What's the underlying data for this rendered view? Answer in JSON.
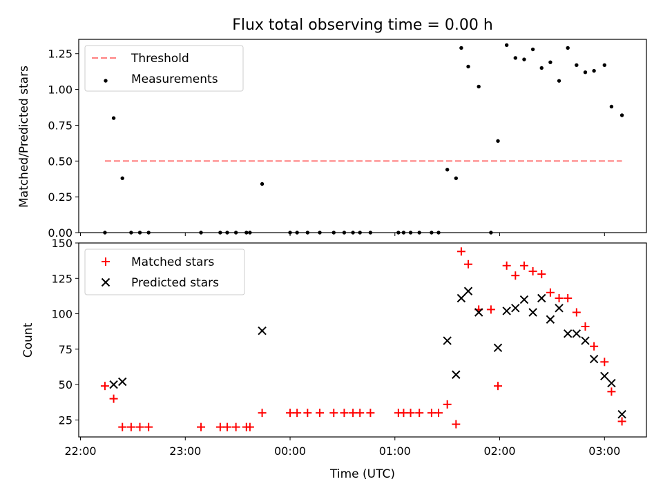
{
  "figure": {
    "title": "Flux total observing time = 0.00 h"
  },
  "chart_data": [
    {
      "type": "scatter",
      "ylabel": "Matched/Predicted stars",
      "xlim": [
        "21:59",
        "03:24"
      ],
      "ylim": [
        0,
        1.35
      ],
      "yticks": [
        "0.00",
        "0.25",
        "0.50",
        "0.75",
        "1.00",
        "1.25"
      ],
      "ytick_values": [
        0,
        0.25,
        0.5,
        0.75,
        1.0,
        1.25
      ],
      "grid": false,
      "legend_position": "top-left",
      "legend": [
        {
          "label": "Threshold",
          "marker": "dashed-line",
          "color": "#ff7f7f"
        },
        {
          "label": "Measurements",
          "marker": "dot",
          "color": "#000000"
        }
      ],
      "threshold": {
        "x": [
          "22:14",
          "03:10"
        ],
        "y": 0.5
      },
      "series": [
        {
          "name": "Measurements",
          "x": [
            "22:14",
            "22:19",
            "22:24",
            "22:29",
            "22:34",
            "22:39",
            "23:09",
            "23:20",
            "23:24",
            "23:29",
            "23:35",
            "23:37",
            "23:44",
            "00:00",
            "00:04",
            "00:10",
            "00:17",
            "00:25",
            "00:31",
            "00:36",
            "00:40",
            "00:46",
            "01:02",
            "01:05",
            "01:09",
            "01:14",
            "01:21",
            "01:25",
            "01:30",
            "01:35",
            "01:38",
            "01:42",
            "01:48",
            "01:55",
            "01:59",
            "02:04",
            "02:09",
            "02:14",
            "02:19",
            "02:24",
            "02:29",
            "02:34",
            "02:39",
            "02:44",
            "02:49",
            "02:54",
            "03:00",
            "03:04",
            "03:10"
          ],
          "y": [
            0.0,
            0.8,
            0.38,
            0.0,
            0.0,
            0.0,
            0.0,
            0.0,
            0.0,
            0.0,
            0.0,
            0.0,
            0.34,
            0.0,
            0.0,
            0.0,
            0.0,
            0.0,
            0.0,
            0.0,
            0.0,
            0.0,
            0.0,
            0.0,
            0.0,
            0.0,
            0.0,
            0.0,
            0.44,
            0.38,
            1.29,
            1.16,
            1.02,
            0.0,
            0.64,
            1.31,
            1.22,
            1.21,
            1.28,
            1.15,
            1.19,
            1.06,
            1.29,
            1.17,
            1.12,
            1.13,
            1.17,
            0.88,
            0.82
          ]
        }
      ]
    },
    {
      "type": "scatter",
      "xlabel": "Time (UTC)",
      "ylabel": "Count",
      "xlim": [
        "21:59",
        "03:24"
      ],
      "xticks": [
        "22:00",
        "23:00",
        "00:00",
        "01:00",
        "02:00",
        "03:00"
      ],
      "ylim": [
        13,
        150
      ],
      "yticks": [
        "25",
        "50",
        "75",
        "100",
        "125",
        "150"
      ],
      "ytick_values": [
        25,
        50,
        75,
        100,
        125,
        150
      ],
      "grid": false,
      "legend_position": "top-left",
      "legend": [
        {
          "label": "Matched stars",
          "marker": "plus",
          "color": "#ff0000"
        },
        {
          "label": "Predicted stars",
          "marker": "x",
          "color": "#000000"
        }
      ],
      "series": [
        {
          "name": "Matched stars",
          "x": [
            "22:14",
            "22:19",
            "22:24",
            "22:29",
            "22:34",
            "22:39",
            "23:09",
            "23:20",
            "23:24",
            "23:29",
            "23:35",
            "23:37",
            "23:44",
            "00:00",
            "00:04",
            "00:10",
            "00:17",
            "00:25",
            "00:31",
            "00:36",
            "00:40",
            "00:46",
            "01:02",
            "01:05",
            "01:09",
            "01:14",
            "01:21",
            "01:25",
            "01:30",
            "01:35",
            "01:38",
            "01:42",
            "01:48",
            "01:55",
            "01:59",
            "02:04",
            "02:09",
            "02:14",
            "02:19",
            "02:24",
            "02:29",
            "02:34",
            "02:39",
            "02:44",
            "02:49",
            "02:54",
            "03:00",
            "03:04",
            "03:10"
          ],
          "y": [
            49,
            40,
            20,
            20,
            20,
            20,
            20,
            20,
            20,
            20,
            20,
            20,
            30,
            30,
            30,
            30,
            30,
            30,
            30,
            30,
            30,
            30,
            30,
            30,
            30,
            30,
            30,
            30,
            36,
            22,
            144,
            135,
            103,
            103,
            49,
            134,
            127,
            134,
            130,
            128,
            115,
            111,
            111,
            101,
            91,
            77,
            66,
            45,
            24
          ]
        },
        {
          "name": "Predicted stars",
          "x": [
            "22:19",
            "22:24",
            "23:44",
            "01:30",
            "01:35",
            "01:38",
            "01:42",
            "01:48",
            "01:59",
            "02:04",
            "02:09",
            "02:14",
            "02:19",
            "02:24",
            "02:29",
            "02:34",
            "02:39",
            "02:44",
            "02:49",
            "02:54",
            "03:00",
            "03:04",
            "03:10"
          ],
          "y": [
            50,
            52,
            88,
            81,
            57,
            111,
            116,
            101,
            76,
            102,
            104,
            110,
            101,
            111,
            96,
            104,
            86,
            86,
            81,
            68,
            56,
            51,
            29
          ]
        }
      ]
    }
  ]
}
